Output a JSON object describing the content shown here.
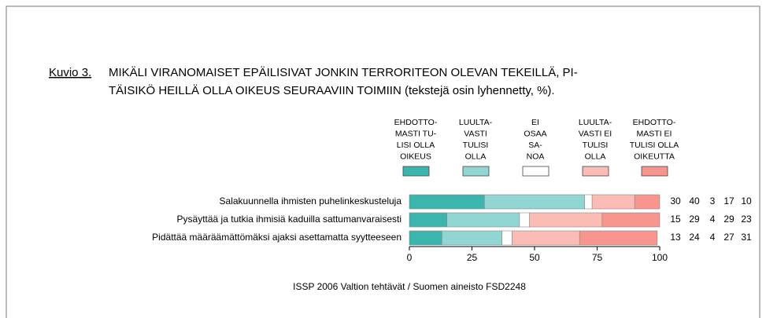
{
  "chart_data": {
    "type": "stacked_bar_horizontal",
    "figure_label": "Kuvio 3.",
    "title": [
      "MIKÄLI VIRANOMAISET EPÄILISIVAT JONKIN TERRORITEON OLEVAN TEKEILLÄ, PI-",
      "TÄISIKÖ HEILLÄ OLLA OIKEUS SEURAAVIIN TOIMIIN (tekstejä osin lyhennetty, %)."
    ],
    "categories": [
      "Salakuunnella ihmisten puhelinkeskusteluja",
      "Pysäyttää ja tutkia ihmisiä kaduilla sattumanvaraisesti",
      "Pidättää määräämättömäksi ajaksi asettamatta syytteeseen"
    ],
    "series": [
      {
        "name": [
          "EHDOTTO-",
          "MASTI TU-",
          "LISI OLLA",
          "OIKEUS"
        ],
        "color": "#3cb5ae",
        "values": [
          30,
          15,
          13
        ]
      },
      {
        "name": [
          "LUULTA-",
          "VASTI",
          "TULISI",
          "OLLA"
        ],
        "color": "#91d6d2",
        "values": [
          40,
          29,
          24
        ]
      },
      {
        "name": [
          "EI",
          "OSAA",
          "SA-",
          "NOA"
        ],
        "color": "#ffffff",
        "values": [
          3,
          4,
          4
        ]
      },
      {
        "name": [
          "LUULTA-",
          "VASTI EI",
          "TULISI",
          "OLLA"
        ],
        "color": "#fbbcb5",
        "values": [
          17,
          29,
          27
        ]
      },
      {
        "name": [
          "EHDOTTO-",
          "MASTI EI",
          "TULISI OLLA",
          "OIKEUTTA"
        ],
        "color": "#f8958e",
        "values": [
          10,
          23,
          31
        ]
      }
    ],
    "xlim": [
      0,
      100
    ],
    "xticks": [
      0,
      25,
      50,
      75,
      100
    ],
    "source": "ISSP 2006  Valtion tehtävät / Suomen aineisto  FSD2248"
  }
}
